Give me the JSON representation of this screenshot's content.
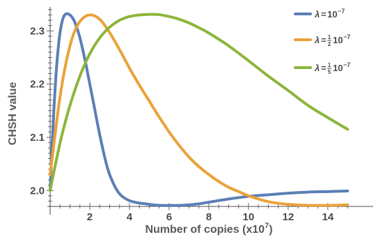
{
  "chart_data": {
    "type": "line",
    "xlabel": "Number of copies (x10",
    "xlabel_sup": "7",
    "xlabel_close": ")",
    "ylabel": "CHSH value",
    "xlim": [
      0,
      15.2
    ],
    "ylim": [
      1.965,
      2.345
    ],
    "x_axis_at_y": 1.97,
    "x_ticks": [
      2,
      4,
      6,
      8,
      10,
      12,
      14
    ],
    "x_tick_labels": [
      "2",
      "4",
      "6",
      "8",
      "10",
      "12",
      "14"
    ],
    "y_ticks": [
      2.0,
      2.1,
      2.2,
      2.3
    ],
    "y_tick_labels": [
      "2.0",
      "2.1",
      "2.2",
      "2.3"
    ],
    "grid": false,
    "legend_position": "top-right",
    "series": [
      {
        "name_parts": {
          "lambda": "λ",
          "eq": "=",
          "frac_num": "",
          "frac_den": "",
          "base": "10",
          "exp": "−7"
        },
        "color": "#5b7fb5",
        "x": [
          0,
          0.1,
          0.2,
          0.3,
          0.4,
          0.5,
          0.6,
          0.7,
          0.8,
          0.9,
          1.0,
          1.1,
          1.2,
          1.3,
          1.4,
          1.5,
          1.6,
          1.8,
          2.0,
          2.2,
          2.5,
          2.8,
          3.0,
          3.3,
          3.6,
          4.0,
          4.4,
          4.8,
          5.2,
          5.6,
          6.0,
          6.5,
          7.0,
          7.5,
          8.0,
          9.0,
          10.0,
          11.0,
          12.0,
          13.0,
          14.0,
          15.0
        ],
        "y": [
          2.0,
          2.085,
          2.16,
          2.22,
          2.265,
          2.297,
          2.317,
          2.328,
          2.332,
          2.332,
          2.33,
          2.326,
          2.32,
          2.311,
          2.3,
          2.287,
          2.272,
          2.238,
          2.2,
          2.162,
          2.105,
          2.055,
          2.03,
          2.005,
          1.99,
          1.981,
          1.977,
          1.975,
          1.973,
          1.972,
          1.972,
          1.972,
          1.973,
          1.975,
          1.978,
          1.984,
          1.989,
          1.992,
          1.995,
          1.997,
          1.998,
          1.999
        ]
      },
      {
        "name_parts": {
          "lambda": "λ",
          "eq": "=",
          "frac_num": "1",
          "frac_den": "2",
          "base": "10",
          "exp": "−7"
        },
        "color": "#e9a23a",
        "x": [
          0,
          0.2,
          0.4,
          0.6,
          0.8,
          1.0,
          1.2,
          1.4,
          1.6,
          1.8,
          2.0,
          2.2,
          2.4,
          2.6,
          2.8,
          3.0,
          3.3,
          3.6,
          4.0,
          4.5,
          5.0,
          5.5,
          6.0,
          6.5,
          7.0,
          7.5,
          8.0,
          8.5,
          9.0,
          9.5,
          10.0,
          10.5,
          11.0,
          11.5,
          12.0,
          13.0,
          14.0,
          15.0
        ],
        "y": [
          2.03,
          2.09,
          2.15,
          2.2,
          2.24,
          2.272,
          2.296,
          2.312,
          2.322,
          2.328,
          2.33,
          2.329,
          2.325,
          2.318,
          2.308,
          2.297,
          2.278,
          2.258,
          2.23,
          2.198,
          2.168,
          2.138,
          2.11,
          2.085,
          2.063,
          2.045,
          2.03,
          2.017,
          2.006,
          1.998,
          1.99,
          1.984,
          1.979,
          1.976,
          1.974,
          1.972,
          1.972,
          1.973
        ]
      },
      {
        "name_parts": {
          "lambda": "λ",
          "eq": "=",
          "frac_num": "1",
          "frac_den": "5",
          "base": "10",
          "exp": "−7"
        },
        "color": "#8db53c",
        "x": [
          0,
          0.3,
          0.6,
          1.0,
          1.5,
          2.0,
          2.5,
          3.0,
          3.5,
          4.0,
          4.5,
          5.0,
          5.3,
          5.6,
          6.0,
          6.5,
          7.0,
          7.5,
          8.0,
          9.0,
          10.0,
          11.0,
          12.0,
          13.0,
          14.0,
          15.0
        ],
        "y": [
          2.0,
          2.055,
          2.105,
          2.16,
          2.215,
          2.257,
          2.287,
          2.307,
          2.32,
          2.327,
          2.33,
          2.331,
          2.331,
          2.33,
          2.327,
          2.322,
          2.315,
          2.306,
          2.296,
          2.272,
          2.244,
          2.215,
          2.188,
          2.16,
          2.137,
          2.115
        ]
      }
    ]
  }
}
